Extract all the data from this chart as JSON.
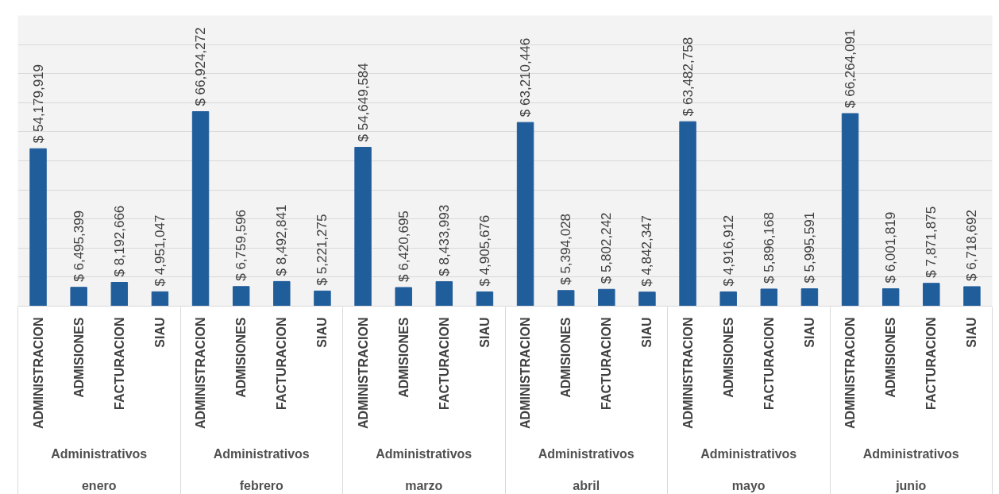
{
  "chart_data": {
    "type": "bar",
    "categories": [
      "ADMINISTRACION",
      "ADMISIONES",
      "FACTURACION",
      "SIAU",
      "ADMINISTRACION",
      "ADMISIONES",
      "FACTURACION",
      "SIAU",
      "ADMINISTRACION",
      "ADMISIONES",
      "FACTURACION",
      "SIAU",
      "ADMINISTRACION",
      "ADMISIONES",
      "FACTURACION",
      "SIAU",
      "ADMINISTRACION",
      "ADMISIONES",
      "FACTURACION",
      "SIAU",
      "ADMINISTRACION",
      "ADMISIONES",
      "FACTURACION",
      "SIAU"
    ],
    "values": [
      54179919,
      6495399,
      8192666,
      4951047,
      66924272,
      6759596,
      8492841,
      5221275,
      54649584,
      6420695,
      8433993,
      4905676,
      63210446,
      5394028,
      5802242,
      4842347,
      63482758,
      4916912,
      5896168,
      5995591,
      66264091,
      6001819,
      7871875,
      6718692
    ],
    "value_labels": [
      "$ 54,179,919",
      "$ 6,495,399",
      "$ 8,192,666",
      "$ 4,951,047",
      "$ 66,924,272",
      "$ 6,759,596",
      "$ 8,492,841",
      "$ 5,221,275",
      "$ 54,649,584",
      "$ 6,420,695",
      "$ 8,433,993",
      "$ 4,905,676",
      "$ 63,210,446",
      "$ 5,394,028",
      "$ 5,802,242",
      "$ 4,842,347",
      "$ 63,482,758",
      "$ 4,916,912",
      "$ 5,896,168",
      "$ 5,995,591",
      "$ 66,264,091",
      "$ 6,001,819",
      "$ 7,871,875",
      "$ 6,718,692"
    ],
    "color": "#205d9b",
    "annotations": [
      "Administrativos",
      "Administrativos",
      "Administrativos",
      "Administrativos",
      "Administrativos",
      "Administrativos",
      "enero",
      "febrero",
      "marzo",
      "abril",
      "mayo",
      "junio"
    ],
    "ylim": [
      0,
      100000000
    ],
    "yticks": [
      {
        "value": 0,
        "label": null
      },
      {
        "value": 10000000,
        "label": null
      },
      {
        "value": 20000000,
        "label": null
      },
      {
        "value": 30000000,
        "label": null
      },
      {
        "value": 40000000,
        "label": null
      },
      {
        "value": 50000000,
        "label": null
      },
      {
        "value": 60000000,
        "label": null
      },
      {
        "value": 70000000,
        "label": null
      },
      {
        "value": 80000000,
        "label": null
      },
      {
        "value": 90000000,
        "label": null
      },
      {
        "value": 100000000,
        "label": null
      }
    ],
    "grid": "y",
    "tick_labels": "x"
  }
}
